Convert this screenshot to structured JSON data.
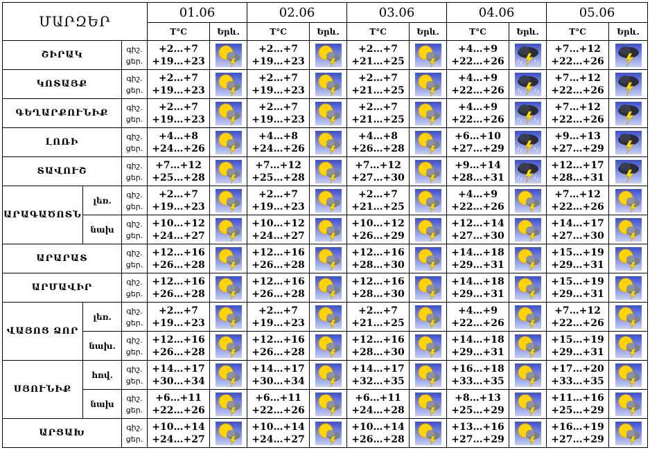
{
  "header": {
    "title": "ՄԱՐԶԵՐ",
    "dates": [
      "01.06",
      "02.06",
      "03.06",
      "04.06",
      "05.06"
    ],
    "temp_label": "T°C",
    "icon_label": "Երև."
  },
  "colors": {
    "sky_top": "#3a4fd0",
    "sky_bottom": "#c8cff5",
    "sun": "#ffd400",
    "cloud": "#7a8090",
    "bolt": "#ffe000"
  },
  "rows": [
    {
      "region": "ՇԻՐԱԿ",
      "sub": "",
      "labels": [
        "գիշ.",
        "ցեր."
      ],
      "days": [
        {
          "n": "+2…+7",
          "d": "+19…+23",
          "icon": "sun-cloud-storm-icon"
        },
        {
          "n": "+2…+7",
          "d": "+19…+23",
          "icon": "sun-cloud-storm-icon"
        },
        {
          "n": "+2…+7",
          "d": "+21…+25",
          "icon": "sun-cloud-storm-icon"
        },
        {
          "n": "+4…+9",
          "d": "+22…+26",
          "icon": "thunderstorm-rain-icon"
        },
        {
          "n": "+7…+12",
          "d": "+22…+26",
          "icon": "thunderstorm-icon"
        }
      ]
    },
    {
      "region": "ԿՈՏԱՅՔ",
      "sub": "",
      "labels": [
        "գիշ.",
        "ցեր."
      ],
      "days": [
        {
          "n": "+2…+7",
          "d": "+19…+23",
          "icon": "sun-cloud-storm-icon"
        },
        {
          "n": "+2…+7",
          "d": "+19…+23",
          "icon": "sun-cloud-storm-icon"
        },
        {
          "n": "+2…+7",
          "d": "+21…+25",
          "icon": "sun-cloud-storm-icon"
        },
        {
          "n": "+4…+9",
          "d": "+22…+26",
          "icon": "thunderstorm-rain-icon"
        },
        {
          "n": "+7…+12",
          "d": "+22…+26",
          "icon": "thunderstorm-icon"
        }
      ]
    },
    {
      "region": "ԳԵՂԱՐՔՈՒՆԻՔ",
      "sub": "",
      "labels": [
        "գիշ.",
        "ցեր."
      ],
      "days": [
        {
          "n": "+2…+7",
          "d": "+19…+23",
          "icon": "sun-cloud-storm-icon"
        },
        {
          "n": "+2…+7",
          "d": "+19…+23",
          "icon": "sun-cloud-storm-icon"
        },
        {
          "n": "+2…+7",
          "d": "+21…+25",
          "icon": "sun-cloud-storm-icon"
        },
        {
          "n": "+4…+9",
          "d": "+22…+26",
          "icon": "thunderstorm-rain-icon"
        },
        {
          "n": "+7…+12",
          "d": "+22…+26",
          "icon": "thunderstorm-icon"
        }
      ]
    },
    {
      "region": "ԼՈՌԻ",
      "sub": "",
      "labels": [
        "գիշ.",
        "ցեր."
      ],
      "days": [
        {
          "n": "+4…+8",
          "d": "+24…+26",
          "icon": "sun-cloud-storm-icon"
        },
        {
          "n": "+4…+8",
          "d": "+24…+26",
          "icon": "sun-cloud-storm-icon"
        },
        {
          "n": "+4…+8",
          "d": "+26…+28",
          "icon": "sun-cloud-storm-icon"
        },
        {
          "n": "+6…+10",
          "d": "+27…+29",
          "icon": "thunderstorm-rain-icon"
        },
        {
          "n": "+9…+13",
          "d": "+27…+29",
          "icon": "thunderstorm-icon"
        }
      ]
    },
    {
      "region": "ՏԱՎՈՒՇ",
      "sub": "",
      "labels": [
        "գիշ.",
        "ցեր."
      ],
      "days": [
        {
          "n": "+7…+12",
          "d": "+25…+28",
          "icon": "sun-cloud-storm-icon"
        },
        {
          "n": "+7…+12",
          "d": "+25…+28",
          "icon": "sun-cloud-storm-icon"
        },
        {
          "n": "+7…+12",
          "d": "+27…+30",
          "icon": "sun-cloud-storm-icon"
        },
        {
          "n": "+9…+14",
          "d": "+28…+31",
          "icon": "thunderstorm-rain-icon"
        },
        {
          "n": "+12…+17",
          "d": "+28…+31",
          "icon": "thunderstorm-icon"
        }
      ]
    },
    {
      "region": "ԱՐԱԳԱԾՈՏՆ",
      "sub": "լեռ.",
      "labels": [
        "գիշ.",
        "ցեր."
      ],
      "days": [
        {
          "n": "+2…+7",
          "d": "+19…+23",
          "icon": "sun-cloud-storm-icon"
        },
        {
          "n": "+2…+7",
          "d": "+19…+23",
          "icon": "sun-cloud-storm-icon"
        },
        {
          "n": "+2…+7",
          "d": "+21…+25",
          "icon": "sun-cloud-storm-icon"
        },
        {
          "n": "+4…+9",
          "d": "+22…+26",
          "icon": "sun-cloud-storm-icon"
        },
        {
          "n": "+7…+12",
          "d": "+22…+26",
          "icon": "sun-cloud-storm-icon"
        }
      ]
    },
    {
      "region": "",
      "sub": "նախ",
      "labels": [
        "գիշ.",
        "ցեր."
      ],
      "days": [
        {
          "n": "+10…+12",
          "d": "+24…+27",
          "icon": "sun-cloud-storm-icon"
        },
        {
          "n": "+10…+12",
          "d": "+24…+27",
          "icon": "sun-cloud-storm-icon"
        },
        {
          "n": "+10…+12",
          "d": "+26…+29",
          "icon": "sun-cloud-storm-icon"
        },
        {
          "n": "+12…+14",
          "d": "+27…+30",
          "icon": "sun-cloud-storm-icon"
        },
        {
          "n": "+14…+17",
          "d": "+27…+30",
          "icon": "sun-cloud-storm-icon"
        }
      ]
    },
    {
      "region": "ԱՐԱՐԱՏ",
      "sub": "",
      "labels": [
        "գիշ.",
        "ցեր."
      ],
      "days": [
        {
          "n": "+12…+16",
          "d": "+26…+28",
          "icon": "sun-cloud-storm-icon"
        },
        {
          "n": "+12…+16",
          "d": "+26…+28",
          "icon": "sun-cloud-storm-icon"
        },
        {
          "n": "+12…+16",
          "d": "+28…+30",
          "icon": "sun-cloud-storm-icon"
        },
        {
          "n": "+14…+18",
          "d": "+29…+31",
          "icon": "sun-cloud-storm-icon"
        },
        {
          "n": "+15…+19",
          "d": "+29…+31",
          "icon": "sun-cloud-storm-icon"
        }
      ]
    },
    {
      "region": "ԱՐՄԱՎԻՐ",
      "sub": "",
      "labels": [
        "գիշ.",
        "ցեր."
      ],
      "days": [
        {
          "n": "+12…+16",
          "d": "+26…+28",
          "icon": "sun-cloud-storm-icon"
        },
        {
          "n": "+12…+16",
          "d": "+26…+28",
          "icon": "sun-cloud-storm-icon"
        },
        {
          "n": "+12…+16",
          "d": "+28…+30",
          "icon": "sun-cloud-storm-icon"
        },
        {
          "n": "+14…+18",
          "d": "+29…+31",
          "icon": "sun-cloud-storm-icon"
        },
        {
          "n": "+15…+19",
          "d": "+29…+31",
          "icon": "sun-cloud-storm-icon"
        }
      ]
    },
    {
      "region": "ՎԱՅՈՑ ՁՈՐ",
      "sub": "լեռ.",
      "labels": [
        "գիշ.",
        "ցեր."
      ],
      "days": [
        {
          "n": "+2…+7",
          "d": "+19…+23",
          "icon": "sun-cloud-storm-icon"
        },
        {
          "n": "+2…+7",
          "d": "+19…+23",
          "icon": "sun-cloud-storm-icon"
        },
        {
          "n": "+2…+7",
          "d": "+21…+25",
          "icon": "sun-cloud-storm-icon"
        },
        {
          "n": "+4…+9",
          "d": "+22…+26",
          "icon": "sun-cloud-storm-icon"
        },
        {
          "n": "+7…+12",
          "d": "+22…+26",
          "icon": "sun-cloud-storm-icon"
        }
      ]
    },
    {
      "region": "",
      "sub": "նախ.",
      "labels": [
        "գիշ.",
        "ցեր."
      ],
      "days": [
        {
          "n": "+12…+16",
          "d": "+26…+28",
          "icon": "sun-cloud-storm-icon"
        },
        {
          "n": "+12…+16",
          "d": "+26…+28",
          "icon": "sun-cloud-storm-icon"
        },
        {
          "n": "+12…+16",
          "d": "+28…+30",
          "icon": "sun-cloud-storm-icon"
        },
        {
          "n": "+14…+18",
          "d": "+29…+31",
          "icon": "sun-cloud-storm-icon"
        },
        {
          "n": "+15…+19",
          "d": "+29…+31",
          "icon": "sun-cloud-storm-icon"
        }
      ]
    },
    {
      "region": "ՍՅՈՒՆԻՔ",
      "sub": "հով.",
      "labels": [
        "գիշ.",
        "ցեր."
      ],
      "days": [
        {
          "n": "+14…+17",
          "d": "+30…+34",
          "icon": "sun-cloud-storm-icon"
        },
        {
          "n": "+14…+17",
          "d": "+30…+34",
          "icon": "sun-cloud-storm-icon"
        },
        {
          "n": "+14…+17",
          "d": "+32…+35",
          "icon": "sun-cloud-storm-icon"
        },
        {
          "n": "+16…+18",
          "d": "+33…+35",
          "icon": "sun-cloud-storm-icon"
        },
        {
          "n": "+17…+20",
          "d": "+33…+35",
          "icon": "sun-cloud-storm-icon"
        }
      ]
    },
    {
      "region": "",
      "sub": "նախ",
      "labels": [
        "գիշ.",
        "ցեր."
      ],
      "days": [
        {
          "n": "+6…+11",
          "d": "+22…+26",
          "icon": "sun-cloud-storm-icon"
        },
        {
          "n": "+6…+11",
          "d": "+22…+26",
          "icon": "sun-cloud-storm-icon"
        },
        {
          "n": "+6…+11",
          "d": "+24…+28",
          "icon": "sun-cloud-storm-icon"
        },
        {
          "n": "+8…+13",
          "d": "+25…+29",
          "icon": "sun-cloud-storm-icon"
        },
        {
          "n": "+11…+16",
          "d": "+25…+29",
          "icon": "sun-cloud-storm-icon"
        }
      ]
    },
    {
      "region": "ԱՐՑԱԽ",
      "sub": "",
      "labels": [
        "գիշ.",
        "ցեր."
      ],
      "days": [
        {
          "n": "+10…+14",
          "d": "+24…+27",
          "icon": "sun-cloud-storm-icon"
        },
        {
          "n": "+10…+14",
          "d": "+24…+27",
          "icon": "sun-cloud-storm-icon"
        },
        {
          "n": "+10…+14",
          "d": "+26…+28",
          "icon": "sun-cloud-storm-icon"
        },
        {
          "n": "+13…+16",
          "d": "+27…+29",
          "icon": "sun-cloud-storm-icon"
        },
        {
          "n": "+16…+19",
          "d": "+27…+29",
          "icon": "sun-cloud-storm-icon"
        }
      ]
    }
  ]
}
